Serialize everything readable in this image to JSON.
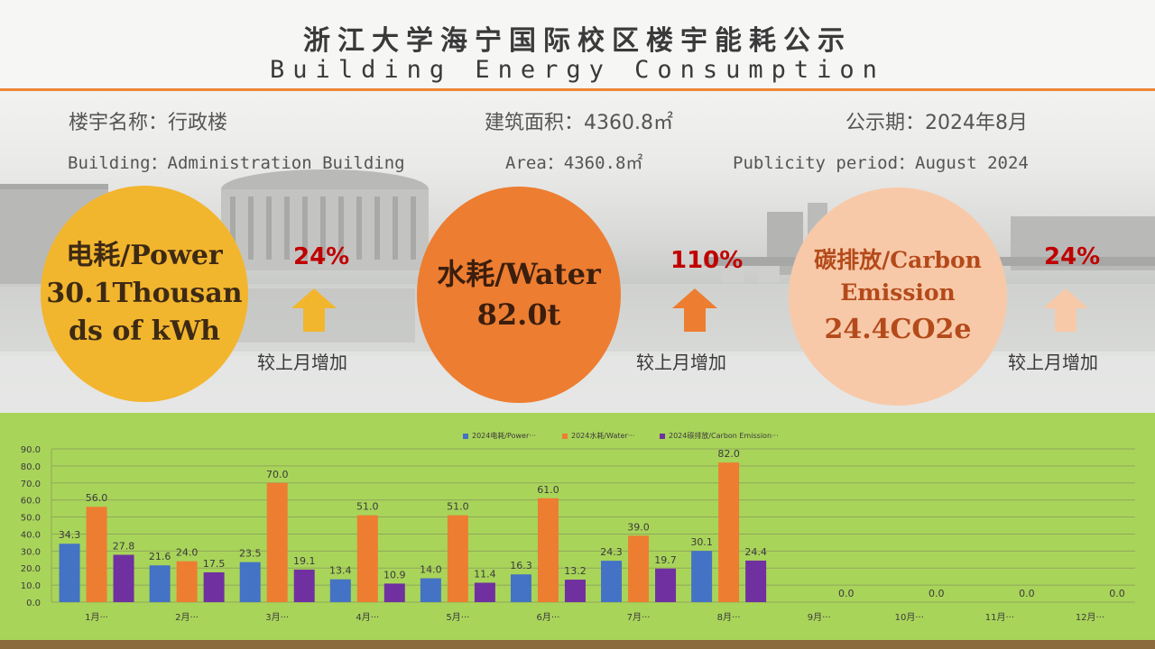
{
  "title": {
    "cn": "浙江大学海宁国际校区楼宇能耗公示",
    "en": "Building Energy Consumption"
  },
  "info": {
    "building_cn": "楼宇名称：行政楼",
    "area_cn": "建筑面积：4360.8㎡",
    "period_cn": "公示期：2024年8月",
    "building_en": "Building：Administration Building",
    "area_en": "Area：4360.8㎡",
    "period_en": "Publicity period：August 2024"
  },
  "metrics": {
    "power": {
      "line1": "电耗/Power",
      "line2": "30.1Thousan",
      "line3": "ds of kWh",
      "change": "24%",
      "change_label": "较上月增加",
      "color": "#f2b52e"
    },
    "water": {
      "line1": "水耗/Water",
      "line2": "82.0t",
      "change": "110%",
      "change_label": "较上月增加",
      "color": "#ed7d31"
    },
    "carbon": {
      "line1": "碳排放/Carbon",
      "line2": "Emission",
      "line3": "24.4CO2e",
      "change": "24%",
      "change_label": "较上月增加",
      "color": "#f8c9a8"
    }
  },
  "chart_data": {
    "type": "bar",
    "categories": [
      "1月···",
      "2月···",
      "3月···",
      "4月···",
      "5月···",
      "6月···",
      "7月···",
      "8月···",
      "9月···",
      "10月···",
      "11月···",
      "12月···"
    ],
    "series": [
      {
        "name": "2024电耗/Power···",
        "color": "#4472c4",
        "values": [
          34.3,
          21.6,
          23.5,
          13.4,
          14.0,
          16.3,
          24.3,
          30.1,
          null,
          null,
          null,
          null
        ]
      },
      {
        "name": "2024水耗/Water···",
        "color": "#ed7d31",
        "values": [
          56.0,
          24.0,
          70.0,
          51.0,
          51.0,
          61.0,
          39.0,
          82.0,
          null,
          null,
          null,
          null
        ]
      },
      {
        "name": "2024碳排放/Carbon Emission···",
        "color": "#7030a0",
        "values": [
          27.8,
          17.5,
          19.1,
          10.9,
          11.4,
          13.2,
          19.7,
          24.4,
          0.0,
          0.0,
          0.0,
          0.0
        ]
      }
    ],
    "yticks": [
      "0.0",
      "10.0",
      "20.0",
      "30.0",
      "40.0",
      "50.0",
      "60.0",
      "70.0",
      "80.0",
      "90.0"
    ],
    "ylim": [
      0,
      90
    ],
    "grid": true,
    "legend_position": "top-center"
  }
}
